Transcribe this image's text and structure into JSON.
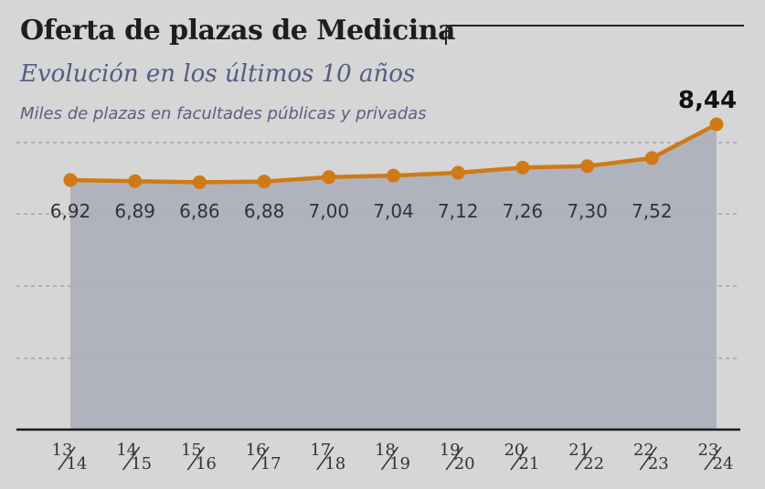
{
  "header": {
    "title": "Oferta de plazas de Medicina",
    "subtitle": "Evolución en los últimos 10 años",
    "units": "Miles de plazas en facultades públicas y privadas"
  },
  "colors": {
    "line": "#cf7a16",
    "area": "#a9adb8",
    "grid": "#8a8d92",
    "axis": "#1a1a1a",
    "label": "#333333"
  },
  "chart_data": {
    "type": "area",
    "categories": [
      {
        "top": "13",
        "bottom": "14"
      },
      {
        "top": "14",
        "bottom": "15"
      },
      {
        "top": "15",
        "bottom": "16"
      },
      {
        "top": "16",
        "bottom": "17"
      },
      {
        "top": "17",
        "bottom": "18"
      },
      {
        "top": "18",
        "bottom": "19"
      },
      {
        "top": "19",
        "bottom": "20"
      },
      {
        "top": "20",
        "bottom": "21"
      },
      {
        "top": "21",
        "bottom": "22"
      },
      {
        "top": "22",
        "bottom": "23"
      },
      {
        "top": "23",
        "bottom": "24"
      }
    ],
    "values": [
      6.92,
      6.89,
      6.86,
      6.88,
      7.0,
      7.04,
      7.12,
      7.26,
      7.3,
      7.52,
      8.44
    ],
    "value_labels": [
      "6,92",
      "6,89",
      "6,86",
      "6,88",
      "7,00",
      "7,04",
      "7,12",
      "7,26",
      "7,30",
      "7,52",
      "8,44"
    ],
    "highlight_last": true,
    "title": "Oferta de plazas de Medicina",
    "subtitle": "Evolución en los últimos 10 años",
    "ylabel": "Miles de plazas en facultades públicas y privadas",
    "grid": true,
    "legend": "none"
  }
}
